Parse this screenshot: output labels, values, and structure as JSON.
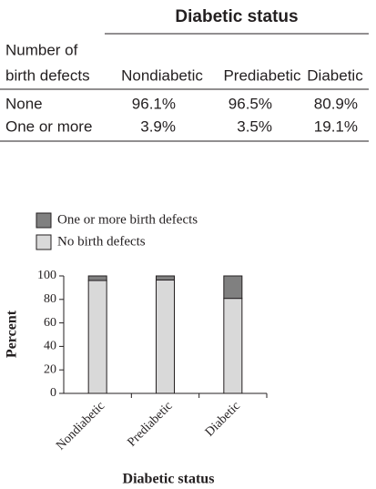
{
  "table": {
    "title": "Diabetic status",
    "row_header": [
      "Number of",
      "birth defects"
    ],
    "columns": [
      "Nondiabetic",
      "Prediabetic",
      "Diabetic"
    ],
    "rows": [
      [
        "None",
        "96.1%",
        "96.5%",
        "80.9%"
      ],
      [
        "One or more",
        "3.9%",
        "3.5%",
        "19.1%"
      ]
    ]
  },
  "chart_data": {
    "type": "stacked_bar",
    "categories": [
      "Nondiabetic",
      "Prediabetic",
      "Diabetic"
    ],
    "series": [
      {
        "name": "No birth defects",
        "color": "#d9d9d9",
        "values": [
          96.1,
          96.5,
          80.9
        ]
      },
      {
        "name": "One or more birth defects",
        "color": "#808080",
        "values": [
          3.9,
          3.5,
          19.1
        ]
      }
    ],
    "xlabel": "Diabetic status",
    "ylabel": "Percent",
    "ylim": [
      0,
      100
    ],
    "yticks": [
      0,
      20,
      40,
      60,
      80,
      100
    ]
  }
}
